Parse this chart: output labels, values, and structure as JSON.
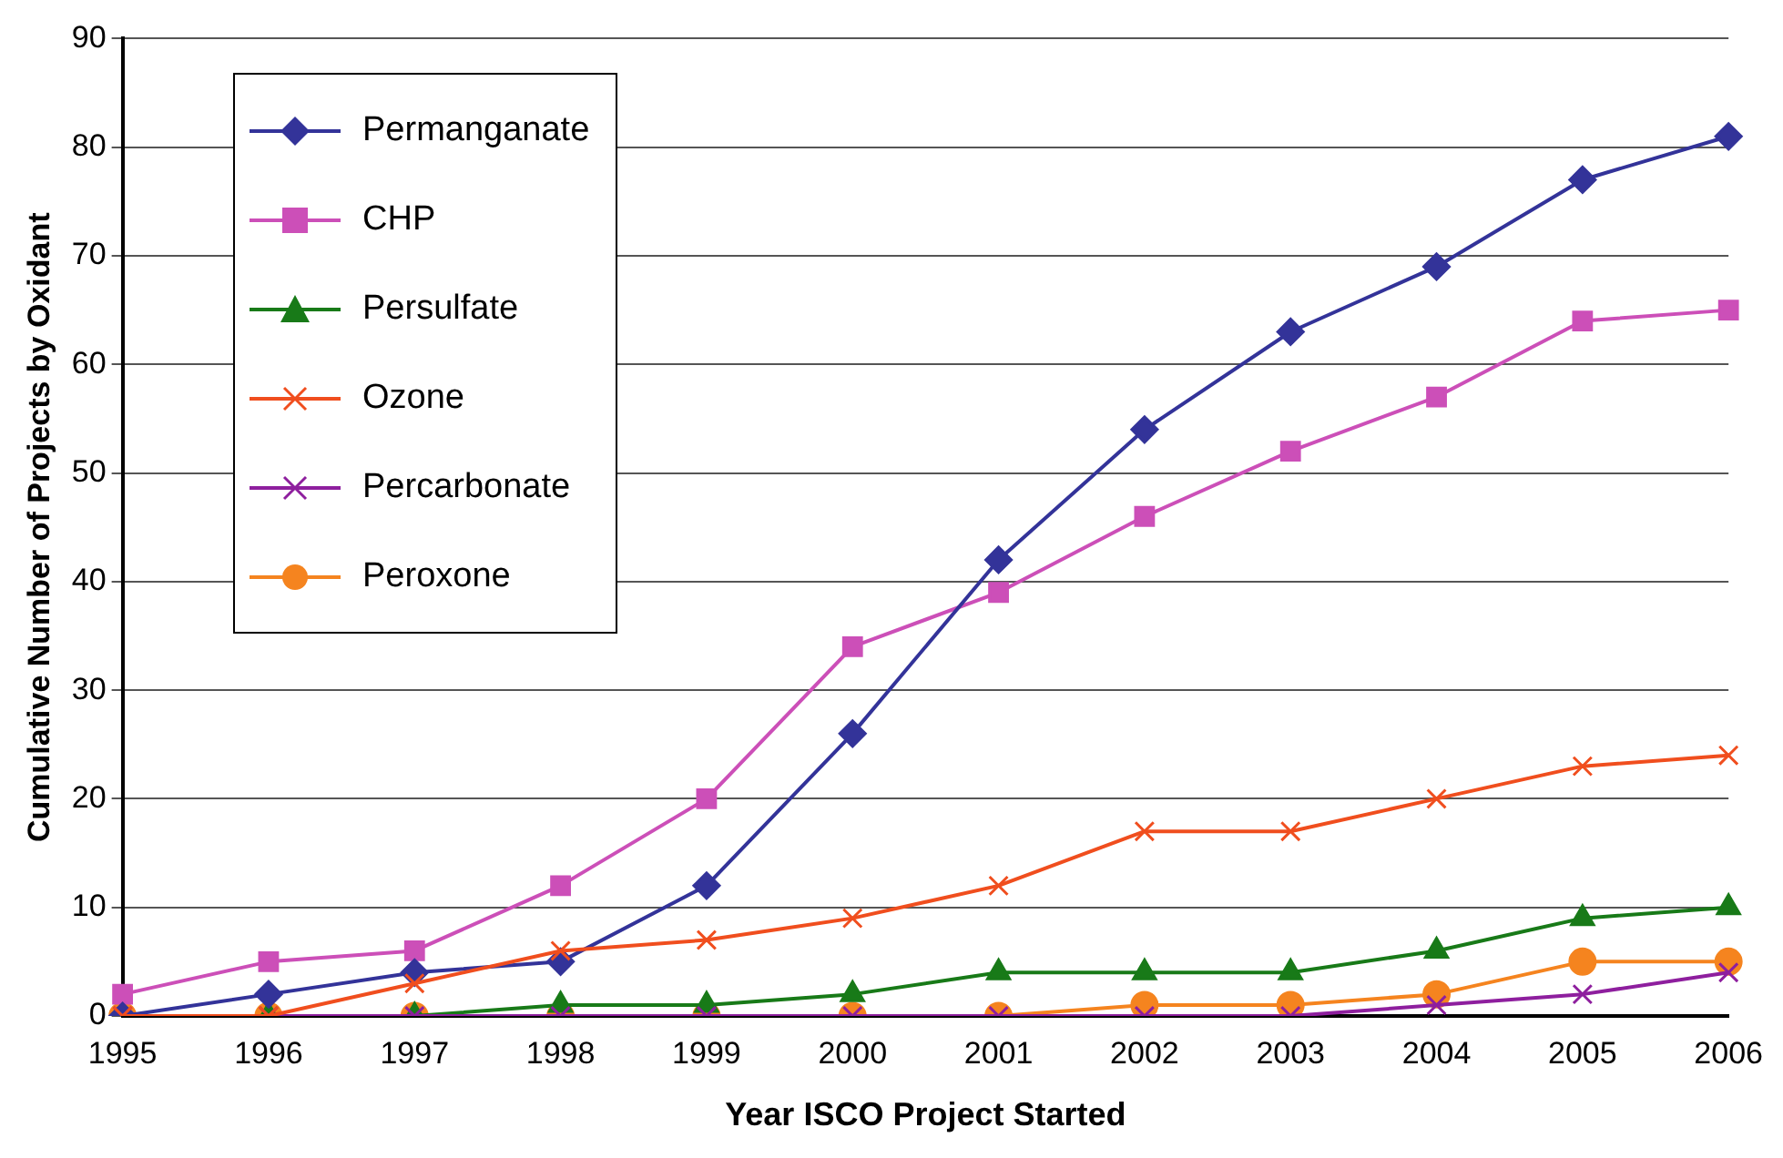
{
  "chart_data": {
    "type": "line",
    "xlabel": "Year ISCO Project Started",
    "ylabel": "Cumulative Number of Projects by Oxidant",
    "categories": [
      "1995",
      "1996",
      "1997",
      "1998",
      "1999",
      "2000",
      "2001",
      "2002",
      "2003",
      "2004",
      "2005",
      "2006"
    ],
    "series": [
      {
        "name": "Permanganate",
        "color": "#333399",
        "marker": "diamond",
        "values": [
          0,
          2,
          4,
          5,
          12,
          26,
          42,
          54,
          63,
          69,
          77,
          81
        ]
      },
      {
        "name": "CHP",
        "color": "#cc4fb8",
        "marker": "square",
        "values": [
          2,
          5,
          6,
          12,
          20,
          34,
          39,
          46,
          52,
          57,
          64,
          65
        ]
      },
      {
        "name": "Persulfate",
        "color": "#187a18",
        "marker": "triangle",
        "values": [
          0,
          0,
          0,
          1,
          1,
          2,
          4,
          4,
          4,
          6,
          9,
          10
        ]
      },
      {
        "name": "Ozone",
        "color": "#f04e1e",
        "marker": "cross",
        "values": [
          0,
          0,
          3,
          6,
          7,
          9,
          12,
          17,
          17,
          20,
          23,
          24
        ]
      },
      {
        "name": "Percarbonate",
        "color": "#8e1f9e",
        "marker": "cross",
        "values": [
          0,
          0,
          0,
          0,
          0,
          0,
          0,
          0,
          0,
          1,
          2,
          4
        ]
      },
      {
        "name": "Peroxone",
        "color": "#f5841f",
        "marker": "circle",
        "values": [
          0,
          0,
          0,
          0,
          0,
          0,
          0,
          1,
          1,
          2,
          5,
          5
        ]
      }
    ],
    "ylim": [
      0,
      90
    ],
    "yticks": [
      0,
      10,
      20,
      30,
      40,
      50,
      60,
      70,
      80,
      90
    ],
    "grid": "y",
    "legend": "top left",
    "line_style": "solid"
  }
}
